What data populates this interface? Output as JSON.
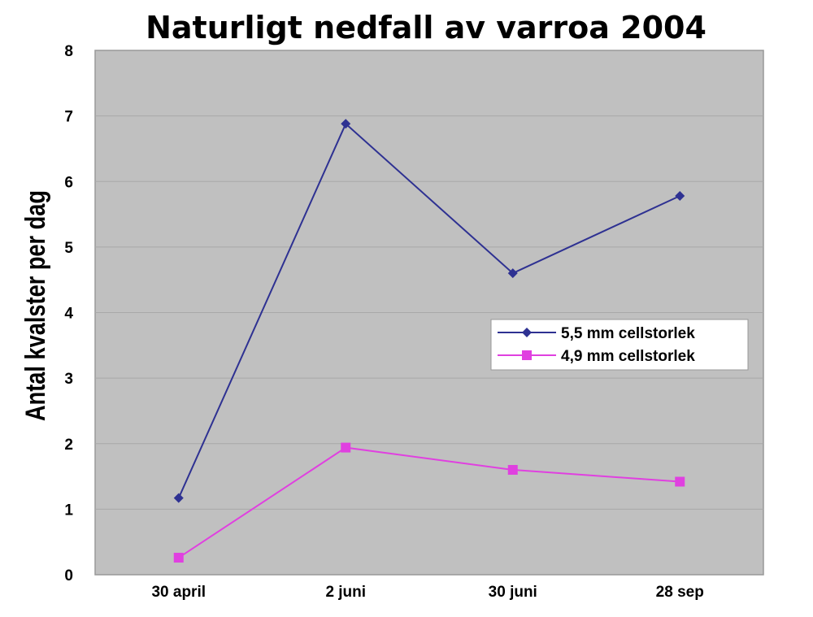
{
  "chart_data": {
    "type": "line",
    "title": "Naturligt nedfall av varroa 2004",
    "xlabel": "",
    "ylabel": "Antal kvalster per dag",
    "categories": [
      "30 april",
      "2 juni",
      "30 juni",
      "28 sep"
    ],
    "ylim": [
      0,
      8
    ],
    "yticks": [
      0,
      1,
      2,
      3,
      4,
      5,
      6,
      7,
      8
    ],
    "grid": true,
    "legend_position": "right",
    "plot_background": "#c0c0c0",
    "series": [
      {
        "name": "5,5 mm cellstorlek",
        "values": [
          1.17,
          6.88,
          4.6,
          5.78
        ],
        "color": "#2e3192",
        "marker": "diamond"
      },
      {
        "name": "4,9 mm cellstorlek",
        "values": [
          0.26,
          1.94,
          1.6,
          1.42
        ],
        "color": "#e040e0",
        "marker": "square"
      }
    ]
  }
}
